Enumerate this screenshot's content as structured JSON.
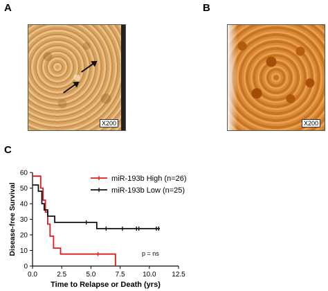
{
  "panels": {
    "a": {
      "label": "A",
      "magnification": "X200"
    },
    "b": {
      "label": "B",
      "magnification": "X200"
    },
    "c": {
      "label": "C"
    }
  },
  "chart_data": {
    "type": "line",
    "step": true,
    "xlabel": "Time to Relapse or Death (yrs)",
    "ylabel": "Disease-free Survival",
    "xlim": [
      0,
      12.5
    ],
    "ylim": [
      0,
      60
    ],
    "xticks": [
      "0.0",
      "2.5",
      "5.0",
      "7.5",
      "10.0",
      "12.5"
    ],
    "yticks": [
      "0",
      "10",
      "20",
      "30",
      "40",
      "50",
      "60"
    ],
    "legend_position": "top-right",
    "annotation": "p = ns",
    "series": [
      {
        "name": "miR-193b High (n=26)",
        "color": "#e0191b",
        "steps": [
          [
            0,
            57.7
          ],
          [
            0.7,
            50
          ],
          [
            0.9,
            42.3
          ],
          [
            1.1,
            34.6
          ],
          [
            1.3,
            26.9
          ],
          [
            1.5,
            19.2
          ],
          [
            1.8,
            11.5
          ],
          [
            2.4,
            7.7
          ],
          [
            7.1,
            0
          ]
        ],
        "censor_x": [
          5.6
        ]
      },
      {
        "name": "miR-193b Low (n=25)",
        "color": "#111111",
        "steps": [
          [
            0,
            52
          ],
          [
            0.5,
            48
          ],
          [
            0.8,
            40
          ],
          [
            1.0,
            36
          ],
          [
            1.3,
            32
          ],
          [
            1.9,
            28
          ],
          [
            5.5,
            24
          ]
        ],
        "censor_x": [
          4.6,
          6.3,
          7.7,
          8.9,
          9.1,
          10.6,
          10.8
        ],
        "end_x": 10.9
      }
    ]
  }
}
